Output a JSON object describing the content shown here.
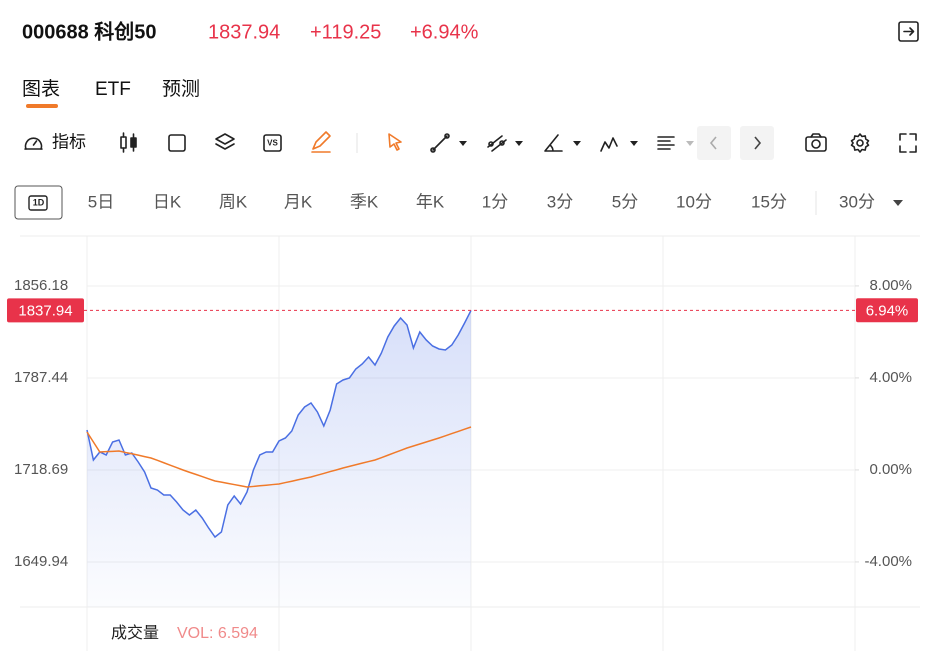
{
  "header": {
    "code_name": "000688 科创50",
    "price": "1837.94",
    "change": "+119.25",
    "change_pct": "+6.94%"
  },
  "tabs": [
    "图表",
    "ETF",
    "预测"
  ],
  "toolbar": {
    "indicator": "指标"
  },
  "periods": [
    "1D",
    "5日",
    "日K",
    "周K",
    "月K",
    "季K",
    "年K",
    "1分",
    "3分",
    "5分",
    "10分",
    "15分",
    "30分"
  ],
  "volume": {
    "title": "成交量",
    "text": "VOL: 6.594"
  },
  "chart_data": {
    "type": "line",
    "area": true,
    "grid": true,
    "ylim": [
      1616.31,
      1893.54
    ],
    "yticks": [
      1649.94,
      1718.69,
      1787.44,
      1856.18
    ],
    "y2lim": [
      -5.96,
      10.17
    ],
    "y2ticks": [
      {
        "value": -4,
        "label": "-4.00%"
      },
      {
        "value": 0,
        "label": "0.00%"
      },
      {
        "value": 4,
        "label": "4.00%"
      },
      {
        "value": 8,
        "label": "8.00%"
      }
    ],
    "price_line": {
      "value": 1837.94,
      "pct": {
        "value": 6.94,
        "label": "6.94%"
      },
      "color": "#e8334a"
    },
    "series": [
      {
        "color": "#4a6fe3",
        "values": [
          1748.58,
          1726.16,
          1732.14,
          1729.9,
          1739.61,
          1741.11,
          1729.9,
          1731.39,
          1724.67,
          1717.2,
          1705.24,
          1703.74,
          1700.01,
          1700.01,
          1694.78,
          1688.8,
          1685.06,
          1688.8,
          1682.82,
          1675.35,
          1668.62,
          1672.36,
          1692.53,
          1699.26,
          1693.28,
          1702.25,
          1718.69,
          1729.9,
          1732.14,
          1732.14,
          1740.36,
          1742.6,
          1747.83,
          1759.79,
          1765.77,
          1768.76,
          1762.03,
          1751.57,
          1763.53,
          1782.96,
          1785.95,
          1787.44,
          1794.17,
          1797.9,
          1803.13,
          1797.15,
          1806.12,
          1818.08,
          1826.3,
          1832.28,
          1827.05,
          1809.86,
          1821.81,
          1815.84,
          1811.35,
          1809.11,
          1808.36,
          1812.1,
          1819.57,
          1828.54,
          1837.94,
          null,
          null,
          null,
          null,
          null,
          null,
          null,
          null,
          null,
          null,
          null,
          null,
          null,
          null,
          null,
          null,
          null,
          null,
          null,
          null,
          null,
          null,
          null,
          null,
          null,
          null,
          null,
          null,
          null,
          null,
          null,
          null,
          null,
          null,
          null,
          null,
          null,
          null,
          null,
          null,
          null,
          null,
          null,
          null,
          null,
          null,
          null,
          null,
          null,
          null,
          null,
          null,
          null,
          null,
          null,
          null,
          null,
          null,
          null,
          null
        ]
      },
      {
        "color": "#f07a2a",
        "values": [
          1747.09,
          1739.6,
          1732.14,
          1732.4,
          1732.6,
          1732.89,
          1731.8,
          1730.8,
          1729.8,
          1728.7,
          1727.66,
          1725.9,
          1724.1,
          1722.3,
          1720.5,
          1718.69,
          1717.0,
          1715.4,
          1713.8,
          1712.1,
          1710.47,
          1709.6,
          1708.7,
          1707.8,
          1706.9,
          1705.99,
          1706.4,
          1706.9,
          1707.3,
          1707.8,
          1708.23,
          1709.3,
          1710.3,
          1711.4,
          1712.4,
          1713.46,
          1714.8,
          1716.1,
          1717.5,
          1718.8,
          1720.18,
          1721.4,
          1722.6,
          1723.8,
          1725.0,
          1726.16,
          1727.9,
          1729.7,
          1731.5,
          1733.3,
          1735.13,
          1736.6,
          1738.1,
          1739.6,
          1741.1,
          1742.6,
          1744.2,
          1745.9,
          1747.5,
          1749.2,
          1750.82,
          null,
          null,
          null,
          null,
          null,
          null,
          null,
          null,
          null,
          null,
          null,
          null,
          null,
          null,
          null,
          null,
          null,
          null,
          null,
          null,
          null,
          null,
          null,
          null,
          null,
          null,
          null,
          null,
          null,
          null,
          null,
          null,
          null,
          null,
          null,
          null,
          null,
          null,
          null,
          null,
          null,
          null,
          null,
          null,
          null,
          null,
          null,
          null,
          null,
          null,
          null,
          null,
          null,
          null,
          null,
          null,
          null,
          null,
          null,
          null
        ]
      }
    ]
  }
}
